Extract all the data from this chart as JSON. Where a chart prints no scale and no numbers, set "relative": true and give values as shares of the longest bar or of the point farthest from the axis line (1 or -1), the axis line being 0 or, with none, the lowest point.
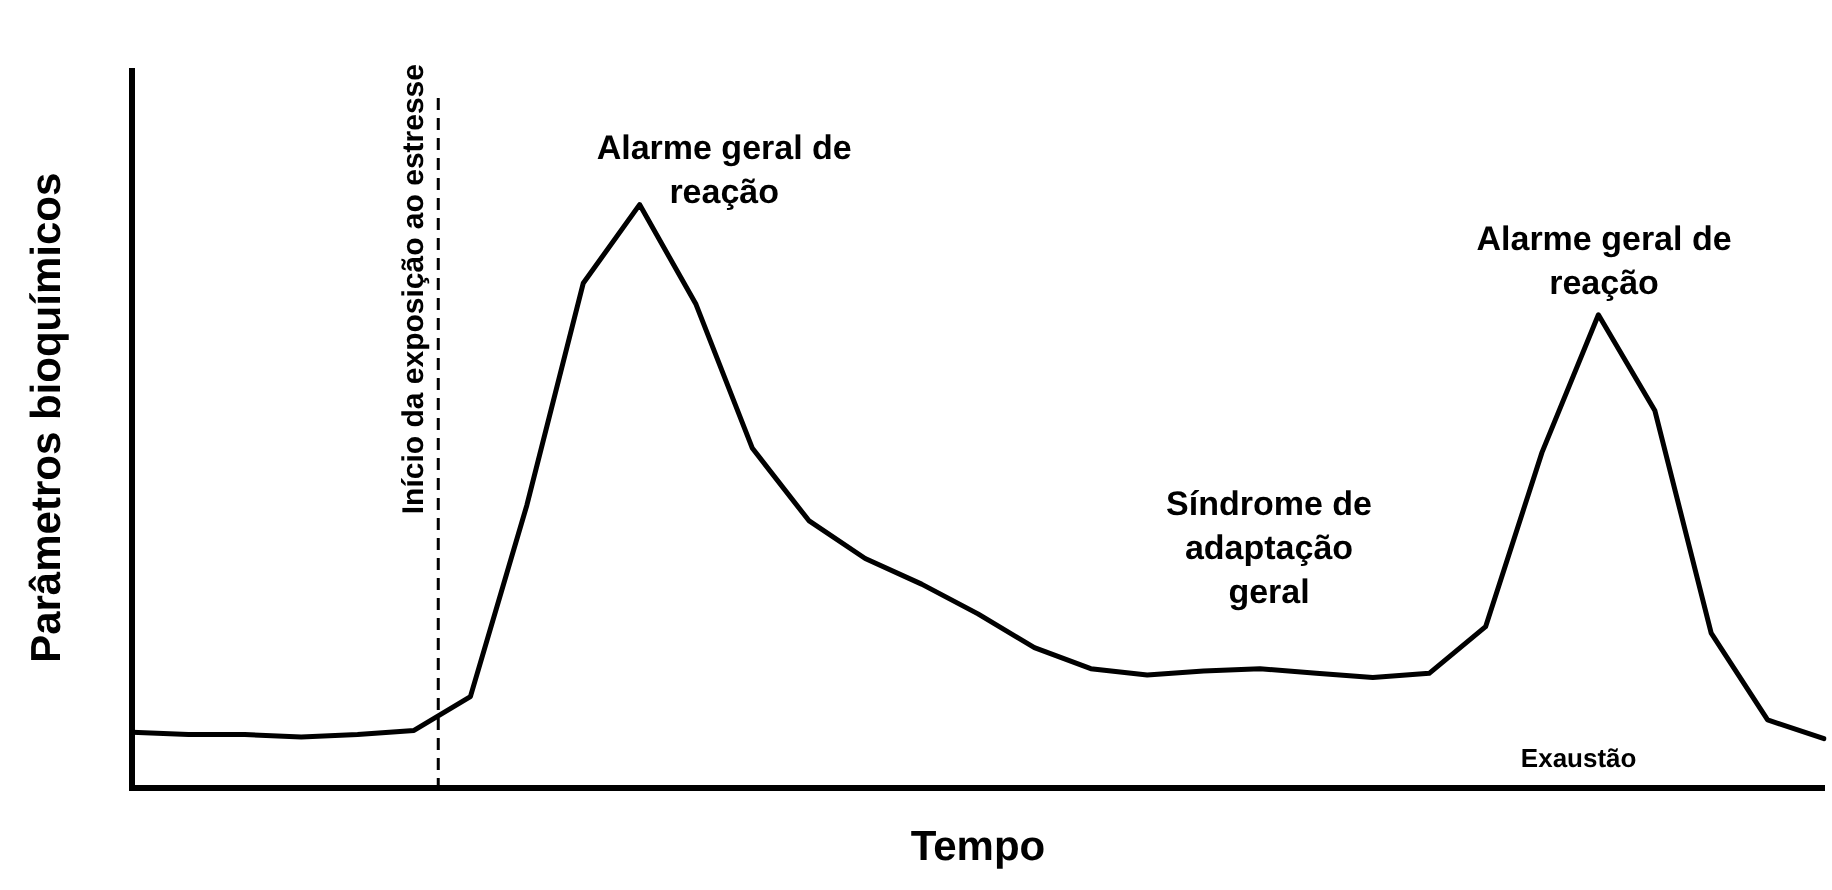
{
  "chart_data": {
    "type": "line",
    "relative": true,
    "xlabel": "Tempo",
    "ylabel": "Parâmetros bioquímicos",
    "grid": false,
    "legend": false,
    "marker": "none",
    "line_style": "solid",
    "categories": [
      null,
      null,
      null,
      null,
      null,
      null,
      null,
      null,
      null,
      null,
      null,
      null,
      null,
      null,
      null,
      null,
      null,
      null,
      null,
      null,
      null,
      null,
      null,
      null,
      null,
      null,
      null,
      null,
      null,
      null,
      null
    ],
    "series": [
      {
        "color": "#000000",
        "values": [
          0.095,
          0.091,
          0.091,
          0.087,
          0.091,
          0.098,
          0.156,
          0.484,
          0.865,
          1,
          0.829,
          0.582,
          0.458,
          0.393,
          0.349,
          0.298,
          0.24,
          0.204,
          0.193,
          0.2,
          0.204,
          0.196,
          0.189,
          0.196,
          0.276,
          0.575,
          0.811,
          0.647,
          0.265,
          0.116,
          0.084
        ]
      }
    ],
    "ref_lines": [
      {
        "axis": "x",
        "label": "Início da exposição ao estresse",
        "line_style": "dashed",
        "color": "#000000"
      }
    ],
    "annotations": [
      "Alarme geral de\nreação",
      "Alarme geral de\nreação",
      "Síndrome de\nadaptação\ngeral",
      "Exaustão"
    ]
  }
}
